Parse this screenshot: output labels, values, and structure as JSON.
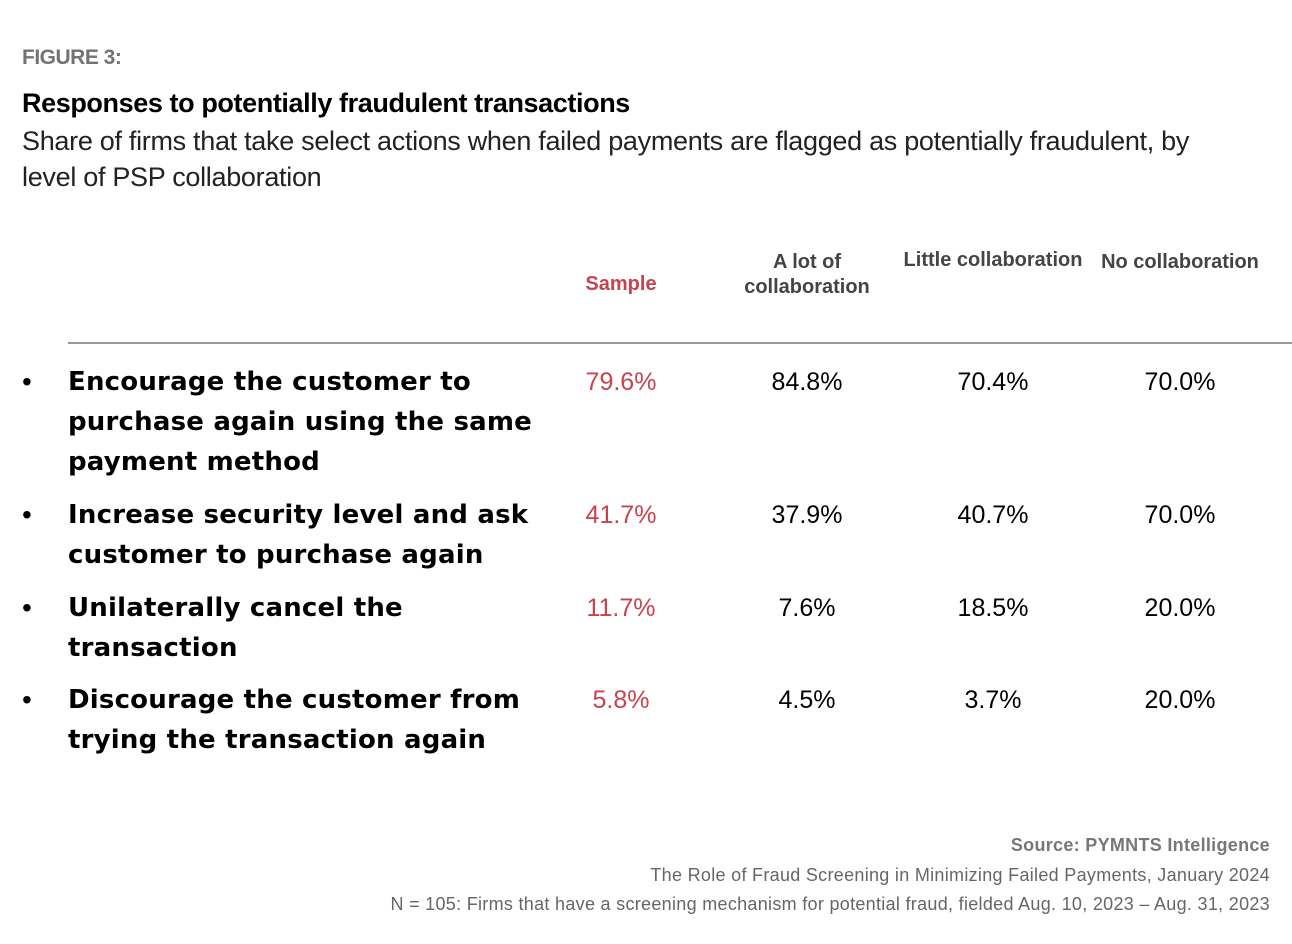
{
  "figure_label": "FIGURE 3:",
  "chart_data": {
    "type": "table",
    "title": "Responses to potentially fraudulent transactions",
    "subtitle": "Share of firms that take select actions when failed payments are flagged as potentially fraudulent, by level of PSP collaboration",
    "columns": [
      "Sample",
      "A lot of collaboration",
      "Little collaboration",
      "No collaboration"
    ],
    "rows": [
      {
        "label": "Encourage the customer to purchase again using the same payment method",
        "values": [
          "79.6%",
          "84.8%",
          "70.4%",
          "70.0%"
        ]
      },
      {
        "label": "Increase security level and ask customer to purchase again",
        "values": [
          "41.7%",
          "37.9%",
          "40.7%",
          "70.0%"
        ]
      },
      {
        "label": "Unilaterally cancel the transaction",
        "values": [
          "11.7%",
          "7.6%",
          "18.5%",
          "20.0%"
        ]
      },
      {
        "label": "Discourage the customer from trying the transaction again",
        "values": [
          "5.8%",
          "4.5%",
          "3.7%",
          "20.0%"
        ]
      }
    ],
    "bullet": "•"
  },
  "footer": {
    "source": "Source: PYMNTS Intelligence",
    "report": "The Role of Fraud Screening in Minimizing Failed Payments, January 2024",
    "note": "N = 105: Firms that have a screening mechanism for potential fraud, fielded Aug. 10, 2023 – Aug. 31, 2023"
  },
  "colors": {
    "sample": "#c8434f",
    "rule": "#999999",
    "muted": "#666666"
  }
}
